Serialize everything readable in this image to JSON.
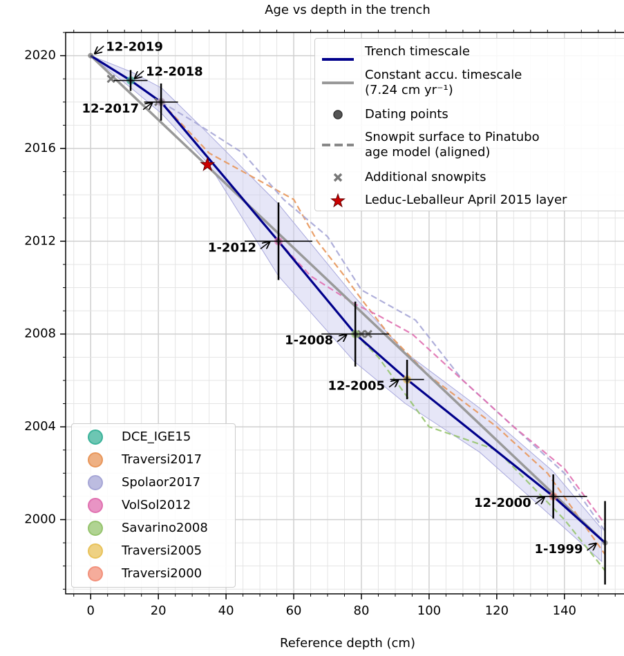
{
  "chart_data": {
    "type": "line",
    "title": "Age vs depth in the trench",
    "xlabel": "Reference depth (cm)",
    "xlim": [
      -7.4,
      157.6
    ],
    "ylim": [
      1996.8,
      2021.0
    ],
    "xticks": [
      0,
      20,
      40,
      60,
      80,
      100,
      120,
      140
    ],
    "yticks": [
      2000,
      2004,
      2008,
      2012,
      2016,
      2020
    ],
    "xminorticks": [
      -5,
      5,
      10,
      15,
      25,
      30,
      35,
      45,
      50,
      55,
      65,
      70,
      75,
      85,
      90,
      95,
      105,
      110,
      115,
      125,
      130,
      135,
      145,
      150,
      155
    ],
    "yminorticks": [
      1997,
      1998,
      1999,
      2001,
      2002,
      2003,
      2005,
      2006,
      2007,
      2009,
      2010,
      2011,
      2013,
      2014,
      2015,
      2017,
      2018,
      2019,
      2021
    ],
    "grid": true,
    "legend": "upper right",
    "legend2": "lower left",
    "band": {
      "color": "#c8c8ee",
      "x": [
        0,
        12,
        21,
        35,
        55.5,
        78,
        93,
        115,
        136.5,
        151
      ],
      "upper": [
        2020,
        2019.3,
        2018.6,
        2016.6,
        2013.6,
        2009.6,
        2007.2,
        2004.8,
        2002.1,
        1999.6
      ],
      "lower": [
        2020,
        2018.6,
        2017.5,
        2015.3,
        2010.5,
        2006.8,
        2005.0,
        2002.9,
        2000.1,
        1998.2
      ]
    },
    "series": [
      {
        "name": "Trench timescale",
        "color": "#00008b",
        "style": "solid",
        "x": [
          0,
          11.8,
          20.8,
          55.5,
          78.2,
          93.5,
          136.7,
          152
        ],
        "values": [
          2020,
          2018.93,
          2018.0,
          2012.0,
          2008.0,
          2006.04,
          2001.0,
          1999.0
        ]
      },
      {
        "name": "Constant accu. timescale\n(7.24 cm yr⁻¹)",
        "color": "#999999",
        "style": "solid",
        "x": [
          0,
          152
        ],
        "values": [
          2020,
          1999.0
        ]
      }
    ],
    "dating_points": {
      "name": "Dating points",
      "color": "#555555",
      "x": [
        0,
        11.8,
        20.8,
        55.5,
        78.2,
        93.5,
        136.7,
        152
      ],
      "values": [
        2020,
        2018.93,
        2018.0,
        2012.0,
        2008.0,
        2006.04,
        2001.0,
        1999.0
      ],
      "xerr": [
        null,
        5,
        5,
        10,
        10,
        5,
        10,
        null
      ],
      "yerr": [
        null,
        0.45,
        0.8,
        1.67,
        1.4,
        0.85,
        0.95,
        1.8
      ],
      "labels": [
        "12-2019",
        "12-2018",
        "12-2017",
        "1-2012",
        "1-2008",
        "12-2005",
        "12-2000",
        "1-1999"
      ]
    },
    "aligned_name": "Snowpit surface to Pinatubo\nage model (aligned)",
    "aligned_color": "#888888",
    "snowpits": [
      {
        "name": "DCE_IGE15",
        "color": "#3cb39a",
        "x": [
          11.8
        ],
        "values": [
          2018.93
        ]
      },
      {
        "name": "Traversi2017",
        "color": "#e8965a",
        "x": [
          20.8
        ],
        "values": [
          2018.0
        ],
        "aligned_x": [
          20.8,
          35,
          50,
          60,
          67,
          75,
          80,
          88,
          100,
          120,
          135,
          152
        ],
        "aligned_values": [
          2018.0,
          2015.8,
          2014.6,
          2013.8,
          2012.0,
          2010.5,
          2009.5,
          2008.0,
          2006.2,
          2004.0,
          2002.0,
          1998.5
        ]
      },
      {
        "name": "Spolaor2017",
        "color": "#a6a6d6",
        "x": [
          20.8
        ],
        "values": [
          2018.0
        ],
        "aligned_x": [
          20.8,
          30,
          45,
          57,
          70,
          80,
          96,
          110,
          125,
          140,
          152
        ],
        "aligned_values": [
          2018.0,
          2017.2,
          2015.8,
          2013.8,
          2012.2,
          2009.9,
          2008.6,
          2006.0,
          2004.0,
          2002.0,
          1999.5
        ]
      },
      {
        "name": "VolSol2012",
        "color": "#e070b0",
        "x": [
          55.5
        ],
        "values": [
          2012.0
        ],
        "aligned_x": [
          55.5,
          65,
          78,
          85,
          95,
          110,
          125,
          140,
          152
        ],
        "aligned_values": [
          2012.0,
          2010.5,
          2009.3,
          2008.8,
          2008.0,
          2006.0,
          2004.0,
          2002.2,
          1999.8
        ]
      },
      {
        "name": "Savarino2008",
        "color": "#96c46e",
        "x": [
          78.2
        ],
        "values": [
          2008.0
        ],
        "aligned_x": [
          78.2,
          85,
          100,
          120,
          140,
          152
        ],
        "aligned_values": [
          2008.0,
          2007.0,
          2004.0,
          2003.0,
          2000.0,
          1997.8
        ]
      },
      {
        "name": "Traversi2005",
        "color": "#e8c25a",
        "x": [
          93.5
        ],
        "values": [
          2006.04
        ]
      },
      {
        "name": "Traversi2000",
        "color": "#f2907a",
        "x": [
          136.7
        ],
        "values": [
          2001.0
        ]
      }
    ],
    "additional": {
      "name": "Additional snowpits",
      "color": "#777777",
      "x": [
        6,
        20,
        80,
        82
      ],
      "values": [
        2019.0,
        2018.0,
        2008.0,
        2008.0
      ]
    },
    "star": {
      "name": "Leduc-Leballeur April 2015 layer",
      "color": "#cc0000",
      "x": [
        34.5
      ],
      "values": [
        2015.3
      ]
    }
  }
}
